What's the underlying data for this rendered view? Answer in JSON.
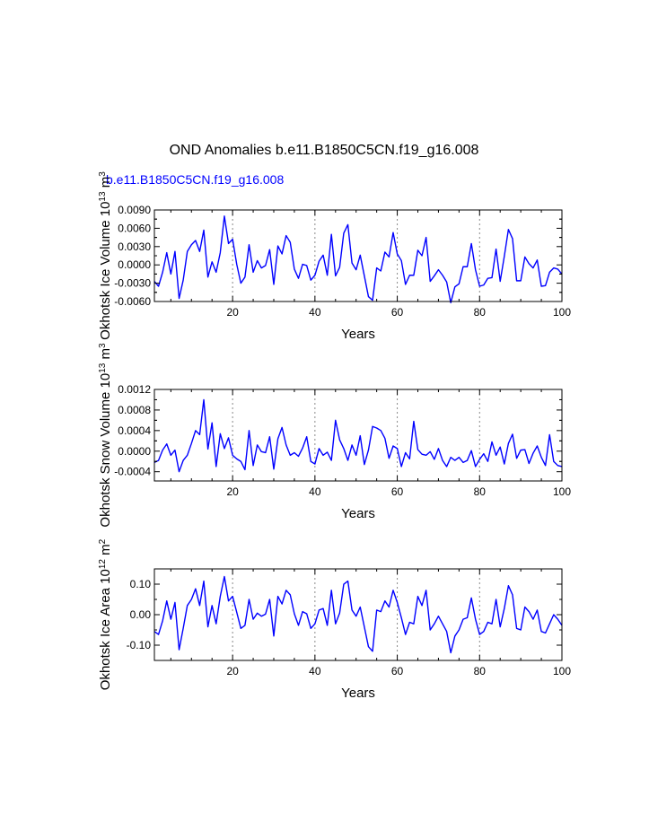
{
  "title": "OND Anomalies b.e11.B1850C5CN.f19_g16.008",
  "subtitle": "b.e11.B1850C5CN.f19_g16.008",
  "colors": {
    "line": "#0000ff",
    "subtitle": "#0000ff",
    "axis": "#000000",
    "reference": "#888888"
  },
  "chart_data": [
    {
      "type": "line",
      "ylabel": "Okhotsk Ice Volume",
      "yunit_base": "10",
      "yunit_exp": "13",
      "yunit_unit": "m",
      "yunit_unit_exp": "3",
      "xlabel": "Years",
      "xlim": [
        1,
        100
      ],
      "ylim": [
        -0.006,
        0.009
      ],
      "xticks": [
        20,
        40,
        60,
        80,
        100
      ],
      "xtick_labels": [
        "20",
        "40",
        "60",
        "80",
        "100"
      ],
      "yticks": [
        -0.006,
        -0.003,
        0,
        0.003,
        0.006,
        0.009
      ],
      "ytick_labels": [
        "-0.0060",
        "-0.0030",
        "0.0000",
        "0.0030",
        "0.0060",
        "0.0090"
      ],
      "reference_x": [
        20,
        40,
        60,
        80
      ],
      "series": [
        {
          "name": "b.e11.B1850C5CN.f19_g16.008",
          "values": [
            -0.0027,
            -0.0035,
            -0.0012,
            0.002,
            -0.0015,
            0.0022,
            -0.0055,
            -0.0025,
            0.0022,
            0.0033,
            0.004,
            0.0022,
            0.0057,
            -0.002,
            0.0005,
            -0.0012,
            0.002,
            0.008,
            0.0035,
            0.0042,
            0.0001,
            -0.003,
            -0.002,
            0.0033,
            -0.0012,
            0.0007,
            -0.0005,
            -0.0001,
            0.0025,
            -0.0032,
            0.0031,
            0.0018,
            0.0048,
            0.0037,
            -0.0007,
            -0.0022,
            0.0001,
            -0.0001,
            -0.0025,
            -0.0017,
            0.0006,
            0.0016,
            -0.0017,
            0.005,
            -0.0018,
            -0.0004,
            0.0052,
            0.0066,
            0.0003,
            -0.0008,
            0.0016,
            -0.0018,
            -0.0052,
            -0.0058,
            -0.0005,
            -0.001,
            0.0021,
            0.0013,
            0.0053,
            0.0018,
            0.0007,
            -0.0032,
            -0.0017,
            -0.0017,
            0.0024,
            0.0015,
            0.0045,
            -0.0027,
            -0.0018,
            -0.0008,
            -0.0017,
            -0.0028,
            -0.0062,
            -0.0036,
            -0.0031,
            -0.0003,
            -0.0003,
            0.0035,
            -0.0008,
            -0.0035,
            -0.0033,
            -0.0022,
            -0.0021,
            0.0026,
            -0.0027,
            0.0014,
            0.0058,
            0.0043,
            -0.0026,
            -0.0026,
            0.0013,
            0.0002,
            -0.0005,
            0.0008,
            -0.0035,
            -0.0034,
            -0.0012,
            -0.0005,
            -0.0007,
            -0.0015
          ]
        }
      ]
    },
    {
      "type": "line",
      "ylabel": "Okhotsk Snow Volume",
      "yunit_base": "10",
      "yunit_exp": "13",
      "yunit_unit": "m",
      "yunit_unit_exp": "3",
      "xlabel": "Years",
      "xlim": [
        1,
        100
      ],
      "ylim": [
        -0.00058,
        0.0012
      ],
      "xticks": [
        20,
        40,
        60,
        80,
        100
      ],
      "xtick_labels": [
        "20",
        "40",
        "60",
        "80",
        "100"
      ],
      "yticks": [
        -0.0004,
        0,
        0.0004,
        0.0008,
        0.0012
      ],
      "ytick_labels": [
        "-0.0004",
        "0.0000",
        "0.0004",
        "0.0008",
        "0.0012"
      ],
      "reference_x": [
        20,
        40,
        60,
        80
      ],
      "series": [
        {
          "name": "b.e11.B1850C5CN.f19_g16.008",
          "values": [
            -0.00022,
            -0.00018,
            2e-05,
            0.00014,
            -8e-05,
            2e-05,
            -0.0004,
            -0.00018,
            -8e-05,
            0.00015,
            0.0004,
            0.00032,
            0.001,
            4e-05,
            0.00055,
            -0.0003,
            0.00034,
            5e-05,
            0.00026,
            -8e-05,
            -0.00015,
            -0.0002,
            -0.00036,
            0.0004,
            -0.00028,
            0.00012,
            -1e-05,
            -3e-05,
            0.00028,
            -0.00035,
            0.00024,
            0.00046,
            0.00012,
            -8e-05,
            -3e-05,
            -0.0001,
            6e-05,
            0.00028,
            -0.0002,
            -0.00025,
            5e-05,
            -8e-05,
            -2e-05,
            -0.00018,
            0.0006,
            0.00022,
            5e-05,
            -0.00018,
            0.00012,
            -8e-05,
            0.0003,
            -0.00026,
            2e-05,
            0.00048,
            0.00045,
            0.0004,
            0.00025,
            -0.00014,
            0.0001,
            5e-05,
            -0.0003,
            -3e-05,
            -0.00015,
            0.00058,
            3e-05,
            -6e-05,
            -8e-05,
            -1e-05,
            -0.00016,
            5e-05,
            -0.00018,
            -0.0003,
            -0.00012,
            -0.00018,
            -0.00012,
            -0.00022,
            -0.00018,
            1e-05,
            -0.0003,
            -0.00016,
            -5e-05,
            -0.0002,
            0.00018,
            -8e-05,
            8e-05,
            -0.00025,
            0.00015,
            0.00033,
            -0.00014,
            2e-05,
            3e-05,
            -0.00024,
            -4e-05,
            0.0001,
            -0.00012,
            -0.00028,
            0.00032,
            -0.0002,
            -0.00028,
            -0.0003
          ]
        }
      ]
    },
    {
      "type": "line",
      "ylabel": "Okhotsk Ice Area",
      "yunit_base": "10",
      "yunit_exp": "12",
      "yunit_unit": "m",
      "yunit_unit_exp": "2",
      "xlabel": "Years",
      "xlim": [
        1,
        100
      ],
      "ylim": [
        -0.15,
        0.15
      ],
      "xticks": [
        20,
        40,
        60,
        80,
        100
      ],
      "xtick_labels": [
        "20",
        "40",
        "60",
        "80",
        "100"
      ],
      "yticks": [
        -0.1,
        0,
        0.1
      ],
      "ytick_labels": [
        "-0.10",
        "0.00",
        "0.10"
      ],
      "reference_x": [
        20,
        40,
        60,
        80
      ],
      "series": [
        {
          "name": "b.e11.B1850C5CN.f19_g16.008",
          "values": [
            -0.055,
            -0.065,
            -0.02,
            0.045,
            -0.015,
            0.04,
            -0.115,
            -0.045,
            0.03,
            0.05,
            0.085,
            0.03,
            0.11,
            -0.04,
            0.03,
            -0.03,
            0.06,
            0.125,
            0.045,
            0.06,
            0.008,
            -0.045,
            -0.035,
            0.05,
            -0.015,
            0.005,
            -0.005,
            0.002,
            0.05,
            -0.07,
            0.06,
            0.035,
            0.08,
            0.065,
            0.003,
            -0.035,
            0.01,
            0.003,
            -0.045,
            -0.03,
            0.015,
            0.02,
            -0.035,
            0.08,
            -0.03,
            0.005,
            0.1,
            0.11,
            0.015,
            -0.005,
            0.025,
            -0.04,
            -0.105,
            -0.12,
            0.015,
            0.01,
            0.045,
            0.025,
            0.08,
            0.04,
            -0.01,
            -0.065,
            -0.025,
            -0.03,
            0.06,
            0.03,
            0.08,
            -0.05,
            -0.03,
            -0.005,
            -0.03,
            -0.055,
            -0.125,
            -0.07,
            -0.05,
            -0.015,
            -0.01,
            0.055,
            -0.015,
            -0.065,
            -0.055,
            -0.025,
            -0.03,
            0.05,
            -0.04,
            0.02,
            0.095,
            0.065,
            -0.045,
            -0.05,
            0.025,
            0.01,
            -0.015,
            0.015,
            -0.055,
            -0.06,
            -0.03,
            0,
            -0.015,
            -0.035
          ]
        }
      ]
    }
  ]
}
